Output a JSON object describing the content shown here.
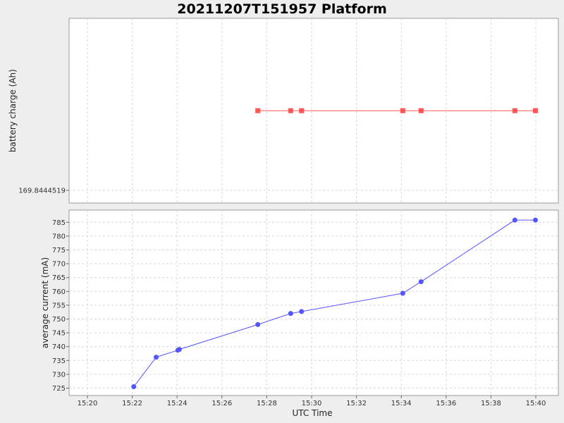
{
  "chart_data": {
    "type": "line",
    "title": "20211207T151957 Platform",
    "xlabel": "UTC Time",
    "x_ticks": [
      "15:20",
      "15:22",
      "15:24",
      "15:26",
      "15:28",
      "15:30",
      "15:32",
      "15:34",
      "15:36",
      "15:38",
      "15:40"
    ],
    "grid": true,
    "subplots": [
      {
        "ylabel": "battery charge (Ah)",
        "y_ticks": [
          "169.8444519"
        ],
        "series": [
          {
            "color": "#ff5555",
            "marker": "square",
            "x": [
              "15:27:36",
              "15:29:04",
              "15:29:33",
              "15:34:04",
              "15:34:53",
              "15:39:04",
              "15:39:59"
            ],
            "y": [
              169.8444519,
              169.8444519,
              169.8444519,
              169.8444519,
              169.8444519,
              169.8444519,
              169.8444519
            ]
          }
        ]
      },
      {
        "ylabel": "average current (mA)",
        "y_ticks": [
          "725",
          "730",
          "735",
          "740",
          "745",
          "750",
          "755",
          "760",
          "765",
          "770",
          "775",
          "780",
          "785"
        ],
        "ylim": [
          722.5,
          788.5
        ],
        "series": [
          {
            "color": "#5555ff",
            "marker": "circle",
            "x": [
              "15:22:04",
              "15:23:04",
              "15:24:02",
              "15:24:06",
              "15:27:36",
              "15:29:04",
              "15:29:33",
              "15:34:04",
              "15:34:53",
              "15:39:04",
              "15:39:59"
            ],
            "y": [
              725.5,
              736.2,
              738.7,
              739.0,
              748.0,
              752.0,
              752.7,
              759.3,
              763.5,
              785.8,
              785.8
            ]
          }
        ]
      }
    ]
  }
}
